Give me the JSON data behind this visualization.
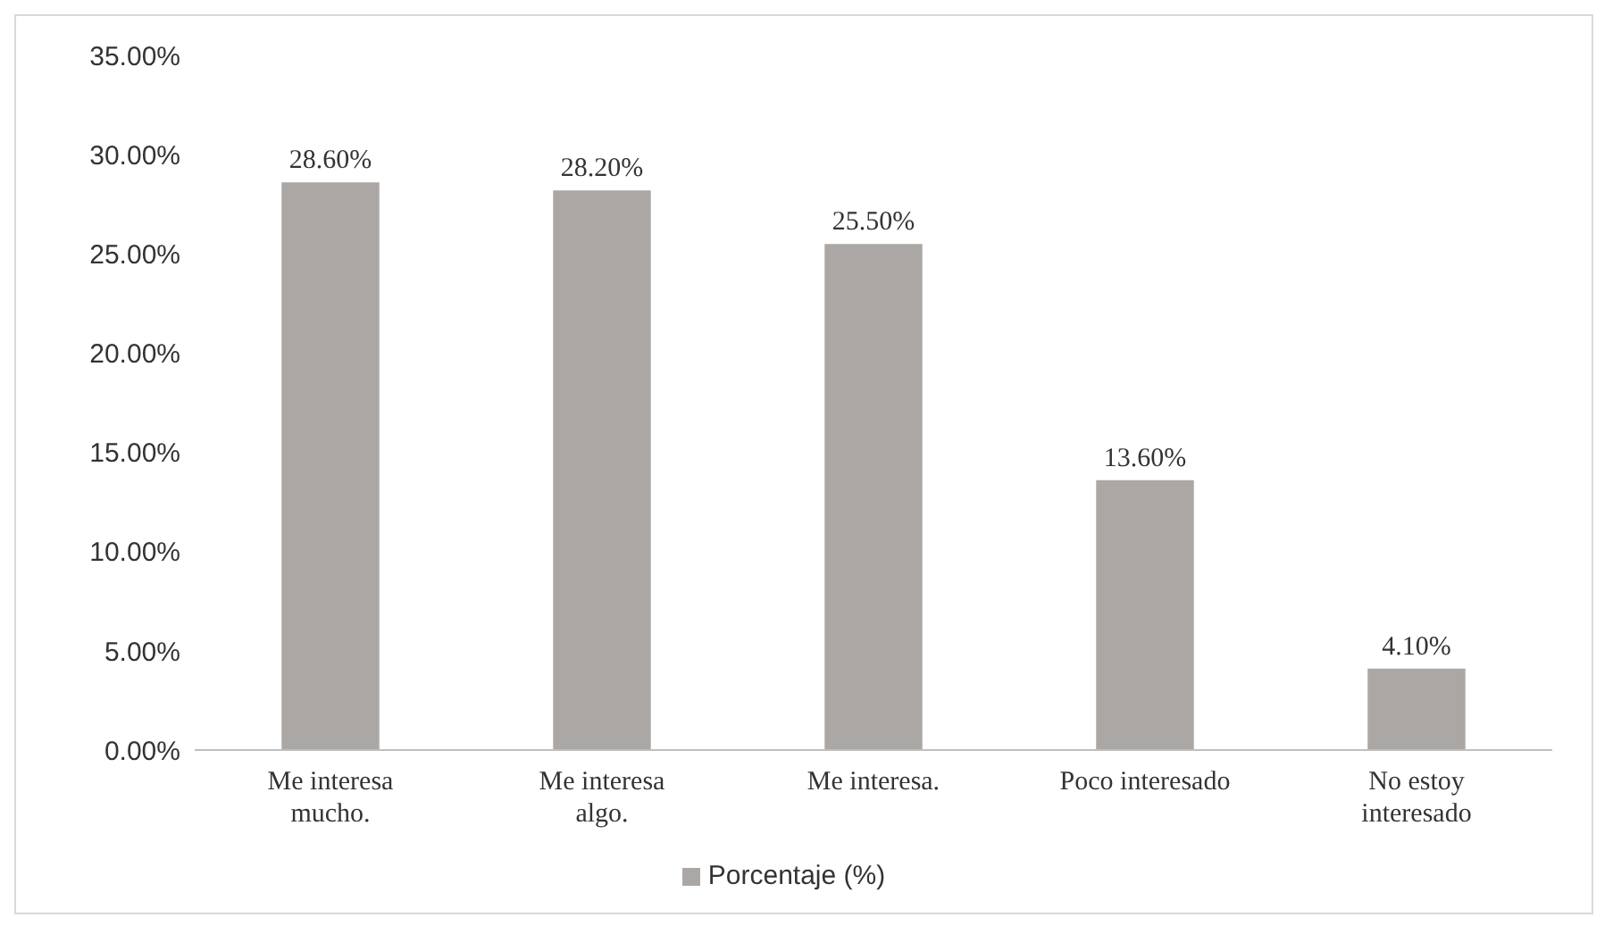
{
  "chart_data": {
    "type": "bar",
    "categories": [
      "Me interesa mucho.",
      "Me interesa algo.",
      "Me interesa.",
      "Poco interesado",
      "No estoy interesado"
    ],
    "series": [
      {
        "name": "Porcentaje (%)",
        "color": "#aba7a5",
        "values": [
          28.6,
          28.2,
          25.5,
          13.6,
          4.1
        ],
        "value_labels": [
          "28.60%",
          "28.20%",
          "25.50%",
          "13.60%",
          "4.10%"
        ]
      }
    ],
    "ylim": [
      0,
      35
    ],
    "yticks": [
      {
        "value": 0,
        "label": "0.00%"
      },
      {
        "value": 5,
        "label": "5.00%"
      },
      {
        "value": 10,
        "label": "10.00%"
      },
      {
        "value": 15,
        "label": "15.00%"
      },
      {
        "value": 20,
        "label": "20.00%"
      },
      {
        "value": 25,
        "label": "25.00%"
      },
      {
        "value": 30,
        "label": "30.00%"
      },
      {
        "value": 35,
        "label": "35.00%"
      }
    ],
    "grid": false,
    "legend": "bottom"
  }
}
